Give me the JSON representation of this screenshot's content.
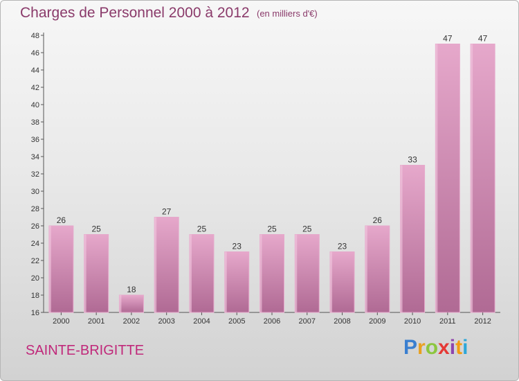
{
  "header": {
    "title": "Charges de Personnel 2000 à 2012",
    "subtitle": "(en milliers d'€)"
  },
  "footer": {
    "commune": "SAINTE-BRIGITTE",
    "logo_letters": [
      "P",
      "r",
      "o",
      "x",
      "i",
      "t",
      "i"
    ],
    "logo_colors": [
      "#3a7fd0",
      "#e8a020",
      "#8cc63f",
      "#e53935",
      "#8e44ad",
      "#f39c12",
      "#2ca7d8"
    ]
  },
  "colors": {
    "bar": "#d58ab6",
    "bar_light": "#e6a8cb",
    "bar_dark": "#b06a94",
    "text": "#333333",
    "title": "#8a3a6a"
  },
  "chart_data": {
    "type": "bar",
    "categories": [
      "2000",
      "2001",
      "2002",
      "2003",
      "2004",
      "2005",
      "2006",
      "2007",
      "2008",
      "2009",
      "2010",
      "2011",
      "2012"
    ],
    "values": [
      26,
      25,
      18,
      27,
      25,
      23,
      25,
      25,
      23,
      26,
      33,
      47,
      47
    ],
    "ylim": [
      16,
      48
    ],
    "yticks": [
      16,
      18,
      20,
      22,
      24,
      26,
      28,
      30,
      32,
      34,
      36,
      38,
      40,
      42,
      44,
      46,
      48
    ],
    "grid": false,
    "data_labels": true
  }
}
